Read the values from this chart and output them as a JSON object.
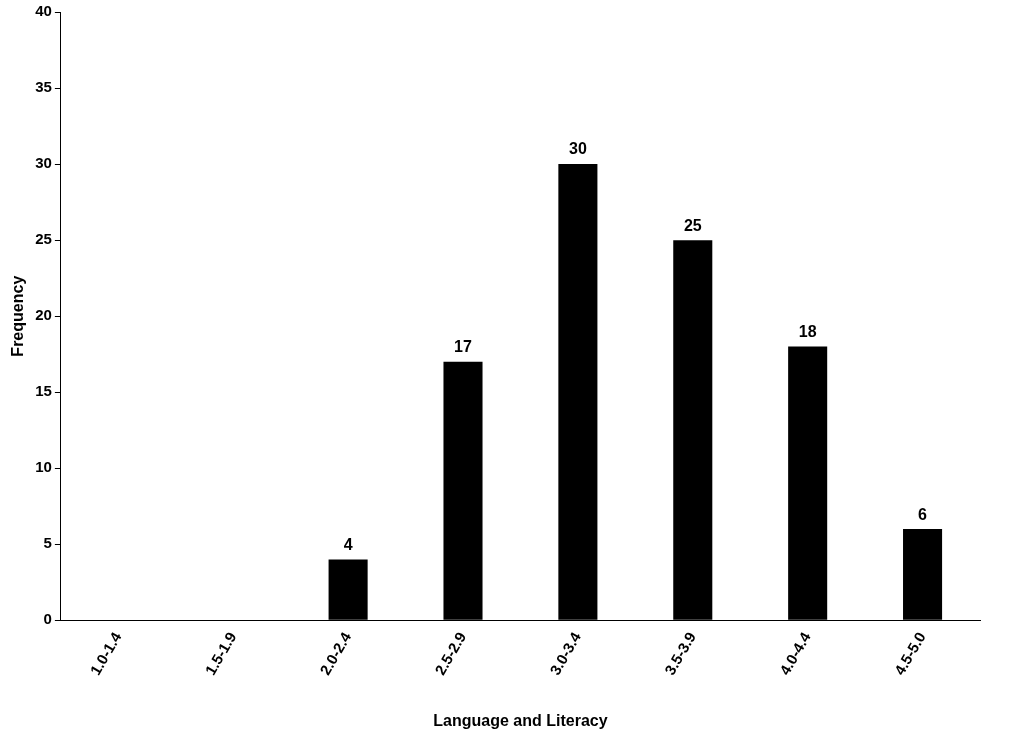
{
  "chart_data": {
    "type": "bar",
    "xlabel": "Language and Literacy",
    "ylabel": "Frequency",
    "categories": [
      "1.0-1.4",
      "1.5-1.9",
      "2.0-2.4",
      "2.5-2.9",
      "3.0-3.4",
      "3.5-3.9",
      "4.0-4.4",
      "4.5-5.0"
    ],
    "values": [
      0,
      0,
      4,
      17,
      30,
      25,
      18,
      6
    ],
    "value_labels": [
      null,
      null,
      "4",
      "17",
      "30",
      "25",
      "18",
      "6"
    ],
    "color": "#000000",
    "ylim": [
      0,
      40
    ],
    "yticks": [
      0,
      5,
      10,
      15,
      20,
      25,
      30,
      35,
      40
    ],
    "grid": false,
    "legend": false
  }
}
